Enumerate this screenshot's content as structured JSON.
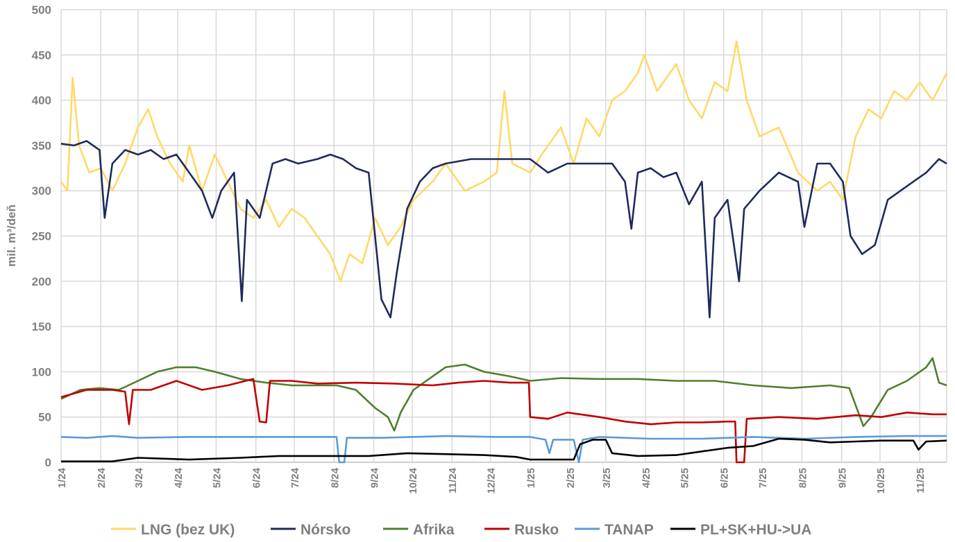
{
  "chart_data": {
    "type": "line",
    "title": "",
    "xlabel": "",
    "ylabel": "mil. m³/deň",
    "ylim": [
      0,
      500
    ],
    "yticks": [
      0,
      50,
      100,
      150,
      200,
      250,
      300,
      350,
      400,
      450,
      500
    ],
    "x_unit": "days since 1/1/2024",
    "xlim": [
      0,
      691
    ],
    "xticks": [
      {
        "label": "1/24",
        "day": 0
      },
      {
        "label": "2/24",
        "day": 31
      },
      {
        "label": "3/24",
        "day": 60
      },
      {
        "label": "4/24",
        "day": 91
      },
      {
        "label": "5/24",
        "day": 121
      },
      {
        "label": "6/24",
        "day": 152
      },
      {
        "label": "7/24",
        "day": 182
      },
      {
        "label": "8/24",
        "day": 213
      },
      {
        "label": "9/24",
        "day": 244
      },
      {
        "label": "10/24",
        "day": 274
      },
      {
        "label": "11/24",
        "day": 305
      },
      {
        "label": "12/24",
        "day": 335
      },
      {
        "label": "1/25",
        "day": 366
      },
      {
        "label": "2/25",
        "day": 397
      },
      {
        "label": "3/25",
        "day": 425
      },
      {
        "label": "4/25",
        "day": 456
      },
      {
        "label": "5/25",
        "day": 486
      },
      {
        "label": "6/25",
        "day": 517
      },
      {
        "label": "7/25",
        "day": 547
      },
      {
        "label": "8/25",
        "day": 578
      },
      {
        "label": "9/25",
        "day": 609
      },
      {
        "label": "10/25",
        "day": 639
      },
      {
        "label": "11/25",
        "day": 670
      }
    ],
    "grid": true,
    "legend_position": "bottom",
    "series": [
      {
        "name": "LNG (bez UK)",
        "color": "#FFD966",
        "points": [
          [
            0,
            310
          ],
          [
            5,
            300
          ],
          [
            9,
            425
          ],
          [
            14,
            350
          ],
          [
            22,
            320
          ],
          [
            31,
            325
          ],
          [
            40,
            300
          ],
          [
            50,
            330
          ],
          [
            60,
            370
          ],
          [
            68,
            390
          ],
          [
            75,
            360
          ],
          [
            85,
            330
          ],
          [
            95,
            310
          ],
          [
            100,
            350
          ],
          [
            110,
            300
          ],
          [
            120,
            340
          ],
          [
            130,
            310
          ],
          [
            140,
            280
          ],
          [
            150,
            270
          ],
          [
            160,
            290
          ],
          [
            170,
            260
          ],
          [
            180,
            280
          ],
          [
            190,
            270
          ],
          [
            200,
            250
          ],
          [
            210,
            230
          ],
          [
            218,
            200
          ],
          [
            225,
            230
          ],
          [
            235,
            220
          ],
          [
            245,
            270
          ],
          [
            255,
            240
          ],
          [
            265,
            260
          ],
          [
            275,
            290
          ],
          [
            290,
            310
          ],
          [
            300,
            330
          ],
          [
            315,
            300
          ],
          [
            330,
            310
          ],
          [
            340,
            320
          ],
          [
            346,
            410
          ],
          [
            352,
            330
          ],
          [
            366,
            320
          ],
          [
            375,
            340
          ],
          [
            390,
            370
          ],
          [
            400,
            330
          ],
          [
            410,
            380
          ],
          [
            420,
            360
          ],
          [
            430,
            400
          ],
          [
            440,
            410
          ],
          [
            450,
            430
          ],
          [
            455,
            450
          ],
          [
            465,
            410
          ],
          [
            480,
            440
          ],
          [
            490,
            400
          ],
          [
            500,
            380
          ],
          [
            510,
            420
          ],
          [
            520,
            410
          ],
          [
            527,
            465
          ],
          [
            535,
            400
          ],
          [
            545,
            360
          ],
          [
            560,
            370
          ],
          [
            575,
            320
          ],
          [
            590,
            300
          ],
          [
            600,
            310
          ],
          [
            610,
            290
          ],
          [
            620,
            360
          ],
          [
            630,
            390
          ],
          [
            640,
            380
          ],
          [
            650,
            410
          ],
          [
            660,
            400
          ],
          [
            670,
            420
          ],
          [
            680,
            400
          ],
          [
            691,
            430
          ]
        ]
      },
      {
        "name": "Nórsko",
        "color": "#1F2A5C",
        "points": [
          [
            0,
            352
          ],
          [
            10,
            350
          ],
          [
            20,
            355
          ],
          [
            30,
            345
          ],
          [
            34,
            270
          ],
          [
            40,
            330
          ],
          [
            50,
            345
          ],
          [
            60,
            340
          ],
          [
            70,
            345
          ],
          [
            80,
            335
          ],
          [
            90,
            340
          ],
          [
            100,
            320
          ],
          [
            110,
            300
          ],
          [
            118,
            270
          ],
          [
            125,
            300
          ],
          [
            135,
            320
          ],
          [
            141,
            178
          ],
          [
            145,
            290
          ],
          [
            155,
            270
          ],
          [
            165,
            330
          ],
          [
            175,
            335
          ],
          [
            185,
            330
          ],
          [
            200,
            335
          ],
          [
            210,
            340
          ],
          [
            220,
            335
          ],
          [
            230,
            325
          ],
          [
            240,
            320
          ],
          [
            245,
            250
          ],
          [
            250,
            180
          ],
          [
            257,
            160
          ],
          [
            262,
            210
          ],
          [
            270,
            280
          ],
          [
            280,
            310
          ],
          [
            290,
            325
          ],
          [
            300,
            330
          ],
          [
            320,
            335
          ],
          [
            340,
            335
          ],
          [
            366,
            335
          ],
          [
            380,
            320
          ],
          [
            395,
            330
          ],
          [
            410,
            330
          ],
          [
            430,
            330
          ],
          [
            440,
            310
          ],
          [
            445,
            258
          ],
          [
            450,
            320
          ],
          [
            460,
            325
          ],
          [
            470,
            315
          ],
          [
            480,
            320
          ],
          [
            490,
            285
          ],
          [
            500,
            310
          ],
          [
            506,
            160
          ],
          [
            510,
            270
          ],
          [
            520,
            290
          ],
          [
            529,
            200
          ],
          [
            533,
            280
          ],
          [
            545,
            300
          ],
          [
            560,
            320
          ],
          [
            575,
            310
          ],
          [
            580,
            260
          ],
          [
            590,
            330
          ],
          [
            600,
            330
          ],
          [
            610,
            310
          ],
          [
            616,
            250
          ],
          [
            625,
            230
          ],
          [
            635,
            240
          ],
          [
            645,
            290
          ],
          [
            655,
            300
          ],
          [
            665,
            310
          ],
          [
            675,
            320
          ],
          [
            685,
            335
          ],
          [
            691,
            330
          ]
        ]
      },
      {
        "name": "Afrika",
        "color": "#4E7F2E",
        "points": [
          [
            0,
            70
          ],
          [
            15,
            80
          ],
          [
            30,
            82
          ],
          [
            45,
            80
          ],
          [
            60,
            90
          ],
          [
            75,
            100
          ],
          [
            90,
            105
          ],
          [
            105,
            105
          ],
          [
            120,
            100
          ],
          [
            140,
            92
          ],
          [
            160,
            88
          ],
          [
            180,
            85
          ],
          [
            200,
            85
          ],
          [
            215,
            85
          ],
          [
            230,
            80
          ],
          [
            245,
            60
          ],
          [
            255,
            50
          ],
          [
            260,
            35
          ],
          [
            265,
            55
          ],
          [
            275,
            80
          ],
          [
            290,
            95
          ],
          [
            300,
            105
          ],
          [
            315,
            108
          ],
          [
            330,
            100
          ],
          [
            350,
            95
          ],
          [
            366,
            90
          ],
          [
            390,
            93
          ],
          [
            420,
            92
          ],
          [
            450,
            92
          ],
          [
            480,
            90
          ],
          [
            510,
            90
          ],
          [
            540,
            85
          ],
          [
            570,
            82
          ],
          [
            600,
            85
          ],
          [
            615,
            82
          ],
          [
            626,
            40
          ],
          [
            632,
            50
          ],
          [
            645,
            80
          ],
          [
            660,
            90
          ],
          [
            675,
            105
          ],
          [
            680,
            115
          ],
          [
            685,
            88
          ],
          [
            691,
            85
          ]
        ]
      },
      {
        "name": "Rusko",
        "color": "#C00000",
        "points": [
          [
            0,
            72
          ],
          [
            20,
            80
          ],
          [
            40,
            80
          ],
          [
            50,
            78
          ],
          [
            53,
            42
          ],
          [
            56,
            80
          ],
          [
            70,
            80
          ],
          [
            90,
            90
          ],
          [
            110,
            80
          ],
          [
            130,
            85
          ],
          [
            150,
            92
          ],
          [
            155,
            45
          ],
          [
            160,
            44
          ],
          [
            163,
            90
          ],
          [
            180,
            90
          ],
          [
            200,
            87
          ],
          [
            230,
            88
          ],
          [
            260,
            87
          ],
          [
            290,
            85
          ],
          [
            310,
            88
          ],
          [
            330,
            90
          ],
          [
            350,
            88
          ],
          [
            365,
            88
          ],
          [
            366,
            50
          ],
          [
            380,
            48
          ],
          [
            395,
            55
          ],
          [
            420,
            50
          ],
          [
            440,
            45
          ],
          [
            460,
            42
          ],
          [
            480,
            44
          ],
          [
            500,
            44
          ],
          [
            520,
            45
          ],
          [
            526,
            45
          ],
          [
            527,
            0
          ],
          [
            533,
            0
          ],
          [
            535,
            48
          ],
          [
            560,
            50
          ],
          [
            590,
            48
          ],
          [
            620,
            52
          ],
          [
            640,
            50
          ],
          [
            660,
            55
          ],
          [
            680,
            53
          ],
          [
            691,
            53
          ]
        ]
      },
      {
        "name": "TANAP",
        "color": "#5B9BD5",
        "points": [
          [
            0,
            28
          ],
          [
            20,
            27
          ],
          [
            40,
            29
          ],
          [
            60,
            27
          ],
          [
            100,
            28
          ],
          [
            140,
            28
          ],
          [
            200,
            28
          ],
          [
            215,
            28
          ],
          [
            217,
            0
          ],
          [
            221,
            0
          ],
          [
            223,
            27
          ],
          [
            250,
            27
          ],
          [
            300,
            29
          ],
          [
            340,
            28
          ],
          [
            366,
            28
          ],
          [
            378,
            25
          ],
          [
            381,
            10
          ],
          [
            384,
            25
          ],
          [
            400,
            25
          ],
          [
            404,
            0
          ],
          [
            407,
            25
          ],
          [
            420,
            28
          ],
          [
            460,
            26
          ],
          [
            500,
            26
          ],
          [
            540,
            28
          ],
          [
            580,
            26
          ],
          [
            620,
            28
          ],
          [
            660,
            29
          ],
          [
            691,
            29
          ]
        ]
      },
      {
        "name": "PL+SK+HU->UA",
        "color": "#000000",
        "points": [
          [
            0,
            1
          ],
          [
            40,
            1
          ],
          [
            60,
            5
          ],
          [
            100,
            3
          ],
          [
            140,
            5
          ],
          [
            170,
            7
          ],
          [
            200,
            7
          ],
          [
            240,
            7
          ],
          [
            270,
            10
          ],
          [
            300,
            9
          ],
          [
            330,
            8
          ],
          [
            355,
            6
          ],
          [
            366,
            3
          ],
          [
            400,
            3
          ],
          [
            405,
            20
          ],
          [
            415,
            25
          ],
          [
            425,
            25
          ],
          [
            430,
            10
          ],
          [
            450,
            7
          ],
          [
            480,
            8
          ],
          [
            500,
            12
          ],
          [
            520,
            16
          ],
          [
            540,
            18
          ],
          [
            560,
            26
          ],
          [
            580,
            25
          ],
          [
            600,
            22
          ],
          [
            620,
            23
          ],
          [
            640,
            24
          ],
          [
            665,
            24
          ],
          [
            669,
            14
          ],
          [
            675,
            23
          ],
          [
            691,
            24
          ]
        ]
      }
    ]
  }
}
